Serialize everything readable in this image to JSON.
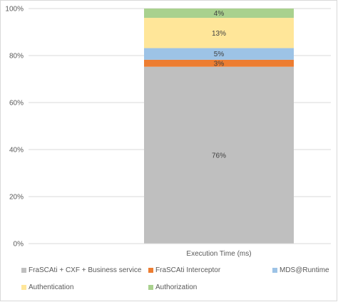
{
  "chart_data": {
    "type": "bar",
    "stacked": "percent",
    "categories": [
      "Execution Time (ms)"
    ],
    "series": [
      {
        "name": "FraSCAti + CXF + Business service",
        "values": [
          76
        ],
        "label": "76%",
        "color": "#bfbfbf"
      },
      {
        "name": "FraSCAti Interceptor",
        "values": [
          3
        ],
        "label": "3%",
        "color": "#ed7d31"
      },
      {
        "name": "MDS@Runtime",
        "values": [
          5
        ],
        "label": "5%",
        "color": "#9dc3e6"
      },
      {
        "name": "Authentication",
        "values": [
          13
        ],
        "label": "13%",
        "color": "#ffe699"
      },
      {
        "name": "Authorization",
        "values": [
          4
        ],
        "label": "4%",
        "color": "#a9d18e"
      }
    ],
    "y_ticks": [
      "0%",
      "20%",
      "40%",
      "60%",
      "80%",
      "100%"
    ],
    "ylim": [
      0,
      100
    ],
    "grid": true,
    "legend_position": "bottom"
  }
}
